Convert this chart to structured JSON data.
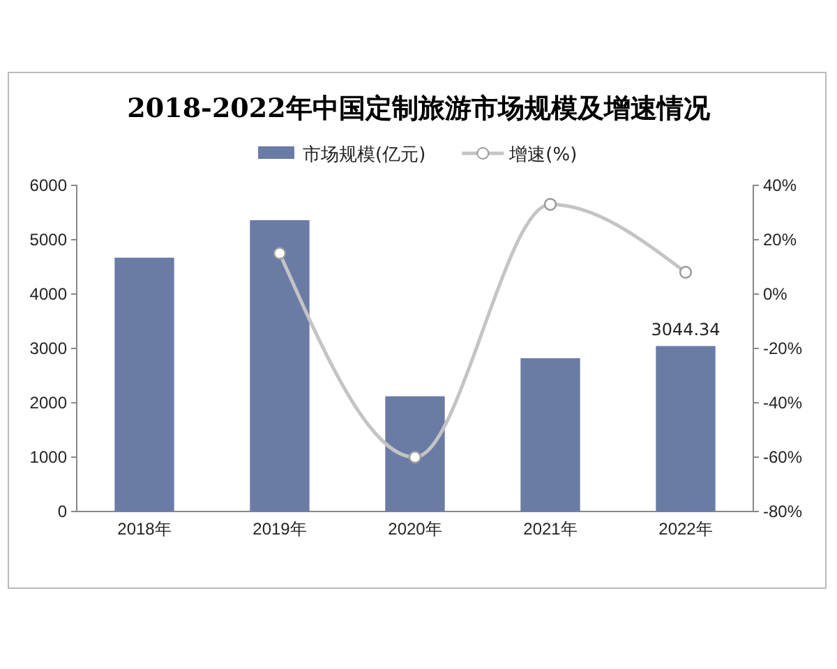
{
  "chart_data": {
    "type": "bar",
    "title": "2018-2022年中国定制旅游市场规模及增速情况",
    "categories": [
      "2018年",
      "2019年",
      "2020年",
      "2021年",
      "2022年"
    ],
    "series": [
      {
        "name": "市场规模(亿元)",
        "color": "#6a7ca6",
        "values": [
          4670,
          5360,
          2120,
          2820,
          3044.34
        ],
        "value_labels": [
          null,
          null,
          null,
          null,
          "3044.34"
        ]
      },
      {
        "name": "增速(%)",
        "type": "line",
        "axis": "y2",
        "color": "#c4c4c4",
        "marker": "circle",
        "values": [
          null,
          15,
          -60,
          33,
          8
        ]
      }
    ],
    "ylim": [
      0,
      6000
    ],
    "yticks": [
      0,
      1000,
      2000,
      3000,
      4000,
      5000,
      6000
    ],
    "y2lim": [
      -80,
      40
    ],
    "y2ticks": [
      {
        "value": -80,
        "label": "-80%"
      },
      {
        "value": -60,
        "label": "-60%"
      },
      {
        "value": -40,
        "label": "-40%"
      },
      {
        "value": -20,
        "label": "-20%"
      },
      {
        "value": 0,
        "label": "0%"
      },
      {
        "value": 20,
        "label": "20%"
      },
      {
        "value": 40,
        "label": "40%"
      }
    ],
    "grid": false,
    "legend": "top"
  }
}
